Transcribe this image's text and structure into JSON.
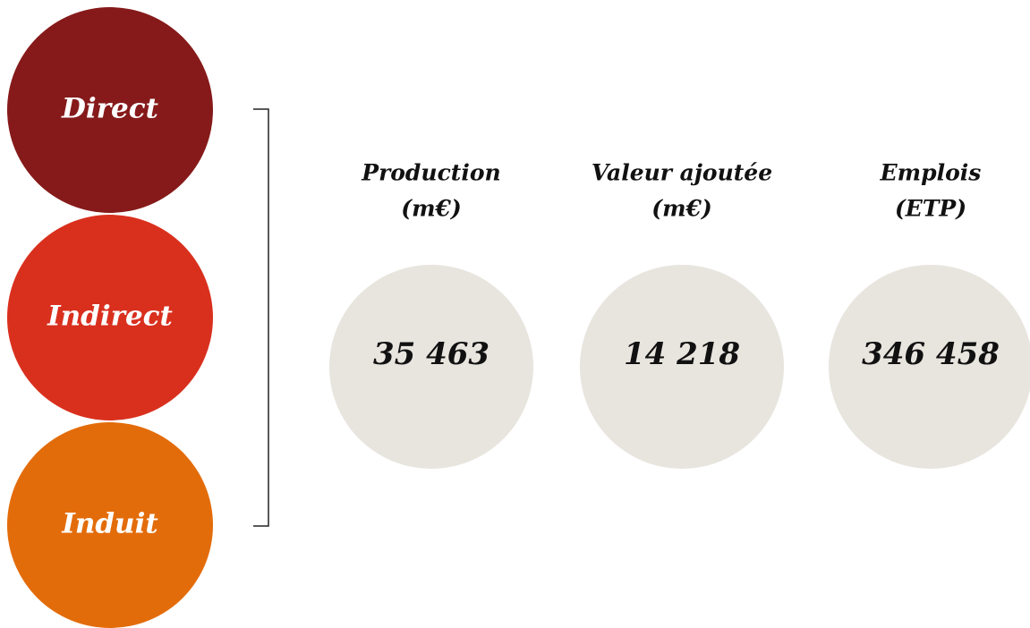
{
  "effects": [
    "Direct",
    "Indirect",
    "Induit"
  ],
  "metrics": [
    {
      "label": [
        "Production",
        "(m€)"
      ],
      "value": "35 463"
    },
    {
      "label": [
        "Valeur ajoutée",
        "(m€)"
      ],
      "value": "14 218"
    },
    {
      "label": [
        "Emplois",
        "(ETP)"
      ],
      "value": "346 458"
    }
  ]
}
